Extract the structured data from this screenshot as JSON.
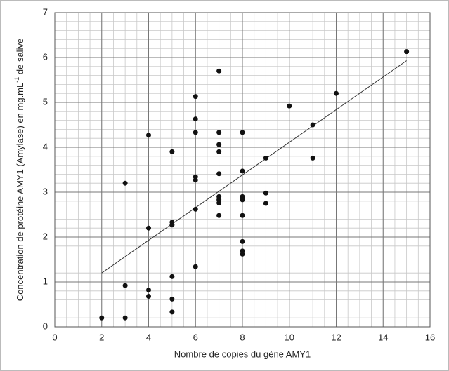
{
  "chart_data": {
    "type": "scatter",
    "x_label": "Nombre de copies du gène AMY1",
    "y_label": [
      "Concentration de protéine AMY1 (Amylase) en mg.mL",
      "-1",
      " de salive"
    ],
    "xlim": [
      0,
      16
    ],
    "xticks": [
      0,
      2,
      4,
      6,
      8,
      10,
      12,
      14,
      16
    ],
    "ylim": [
      0,
      7
    ],
    "yticks": [
      0,
      1,
      2,
      3,
      4,
      5,
      6,
      7
    ],
    "grid": true,
    "minor_grid": {
      "x": 0.5,
      "y": 0.2
    },
    "series": [
      {
        "color": "#111111",
        "x": [
          2,
          3,
          3,
          3,
          4,
          4,
          4,
          4,
          5,
          5,
          5,
          5,
          5,
          5,
          6,
          6,
          6,
          6,
          6,
          6,
          6,
          7,
          7,
          7,
          7,
          7,
          7,
          7,
          7,
          7,
          8,
          8,
          8,
          8,
          8,
          8,
          8,
          8,
          9,
          9,
          9,
          10,
          11,
          11,
          12,
          15
        ],
        "y": [
          0.2,
          3.2,
          0.92,
          0.2,
          4.27,
          2.2,
          0.82,
          0.68,
          3.9,
          2.33,
          2.27,
          1.12,
          0.62,
          0.33,
          5.13,
          4.63,
          4.33,
          3.34,
          3.27,
          2.62,
          1.34,
          5.7,
          4.33,
          4.06,
          3.9,
          3.41,
          2.9,
          2.83,
          2.76,
          2.48,
          4.33,
          3.47,
          2.9,
          2.83,
          2.48,
          1.9,
          1.69,
          1.62,
          3.76,
          2.98,
          2.75,
          4.92,
          4.5,
          3.76,
          5.2,
          6.13
        ]
      }
    ],
    "trendline": {
      "color": "#333333",
      "x": [
        2,
        15
      ],
      "y": [
        1.2,
        5.93
      ]
    }
  }
}
